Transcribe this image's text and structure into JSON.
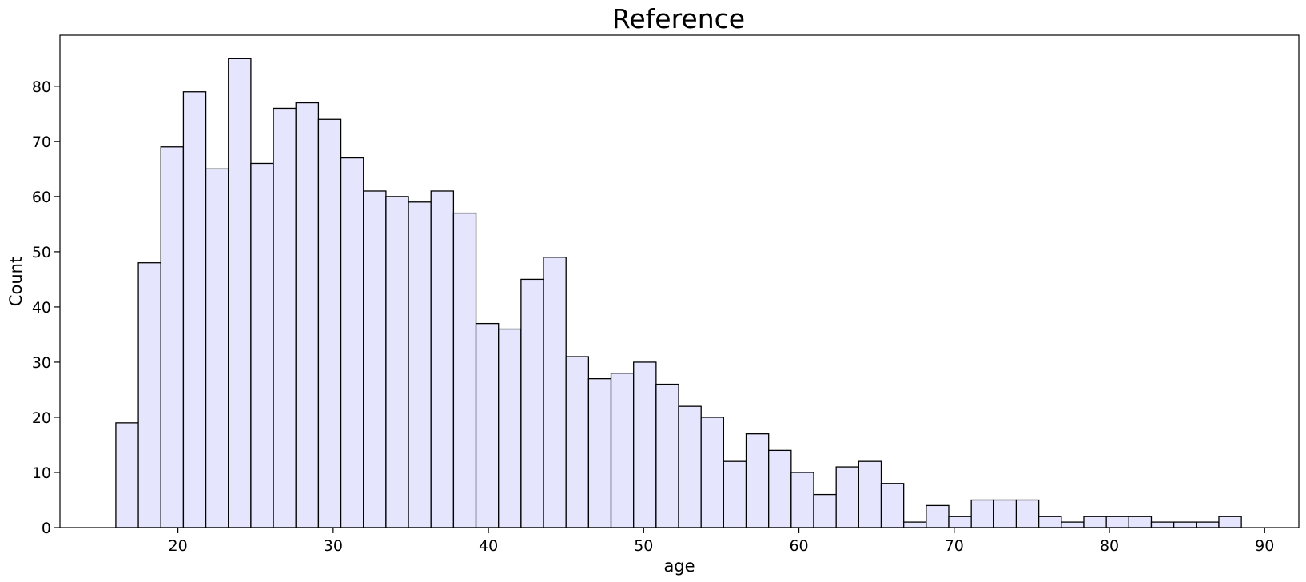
{
  "chart_data": {
    "type": "bar",
    "title": "Reference",
    "xlabel": "age",
    "ylabel": "Count",
    "xlim": [
      12.4,
      92.2
    ],
    "ylim": [
      0,
      89.25
    ],
    "xticks": [
      20,
      30,
      40,
      50,
      60,
      70,
      80,
      90
    ],
    "yticks": [
      0,
      10,
      20,
      30,
      40,
      50,
      60,
      70,
      80
    ],
    "bin_start": 16.0,
    "bin_width": 1.45,
    "values": [
      19,
      48,
      69,
      79,
      65,
      85,
      66,
      76,
      77,
      74,
      67,
      61,
      60,
      59,
      61,
      57,
      37,
      36,
      45,
      49,
      31,
      27,
      28,
      30,
      26,
      22,
      20,
      12,
      17,
      14,
      10,
      6,
      11,
      12,
      8,
      1,
      4,
      2,
      5,
      5,
      5,
      2,
      1,
      2,
      2,
      2,
      1,
      1,
      1,
      2
    ],
    "bar_color": "#e5e5fd",
    "edge_color": "#000000",
    "grid": false
  }
}
